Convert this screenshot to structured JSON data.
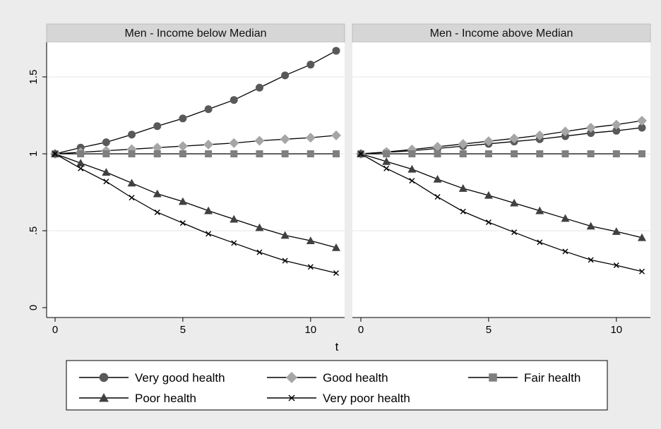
{
  "chart_data": {
    "type": "line",
    "xlabel": "t",
    "ylabel": "",
    "x": [
      0,
      1,
      2,
      3,
      4,
      5,
      6,
      7,
      8,
      9,
      10,
      11
    ],
    "xlim": [
      0,
      11
    ],
    "ylim": [
      0,
      1.7
    ],
    "x_ticks": [
      0,
      5,
      10
    ],
    "x_tick_labels": [
      "0",
      "5",
      "10"
    ],
    "y_ticks": [
      0,
      0.5,
      1,
      1.5
    ],
    "y_tick_labels": [
      "0",
      ".5",
      "1",
      "1.5"
    ],
    "grid": true,
    "legend_position": "bottom",
    "legend": [
      {
        "name": "Very good health",
        "marker": "circle",
        "color": "#595959"
      },
      {
        "name": "Good health",
        "marker": "diamond",
        "color": "#a6a6a6"
      },
      {
        "name": "Fair health",
        "marker": "square",
        "color": "#7f7f7f"
      },
      {
        "name": "Poor health",
        "marker": "triangle",
        "color": "#404040"
      },
      {
        "name": "Very poor health",
        "marker": "x",
        "color": "#000000"
      }
    ],
    "panels": [
      {
        "title": "Men - Income below Median",
        "series": [
          {
            "name": "Very good health",
            "values": [
              1.0,
              1.04,
              1.075,
              1.125,
              1.18,
              1.23,
              1.29,
              1.35,
              1.43,
              1.51,
              1.58,
              1.67
            ]
          },
          {
            "name": "Good health",
            "values": [
              1.0,
              1.01,
              1.02,
              1.03,
              1.04,
              1.05,
              1.06,
              1.07,
              1.085,
              1.095,
              1.105,
              1.12
            ]
          },
          {
            "name": "Fair health",
            "values": [
              1.0,
              1.0,
              1.0,
              1.0,
              1.0,
              1.0,
              1.0,
              1.0,
              1.0,
              1.0,
              1.0,
              1.0
            ]
          },
          {
            "name": "Poor health",
            "values": [
              1.0,
              0.94,
              0.88,
              0.81,
              0.74,
              0.69,
              0.63,
              0.575,
              0.52,
              0.47,
              0.435,
              0.39
            ]
          },
          {
            "name": "Very poor health",
            "values": [
              1.0,
              0.905,
              0.82,
              0.715,
              0.62,
              0.55,
              0.48,
              0.42,
              0.36,
              0.305,
              0.265,
              0.225
            ]
          }
        ]
      },
      {
        "title": "Men - Income above Median",
        "series": [
          {
            "name": "Very good health",
            "values": [
              1.0,
              1.01,
              1.02,
              1.035,
              1.05,
              1.065,
              1.08,
              1.095,
              1.115,
              1.135,
              1.15,
              1.17
            ]
          },
          {
            "name": "Good health",
            "values": [
              1.0,
              1.012,
              1.028,
              1.046,
              1.064,
              1.082,
              1.1,
              1.12,
              1.145,
              1.17,
              1.19,
              1.215
            ]
          },
          {
            "name": "Fair health",
            "values": [
              1.0,
              1.0,
              1.0,
              1.0,
              1.0,
              1.0,
              1.0,
              1.0,
              1.0,
              1.0,
              1.0,
              1.0
            ]
          },
          {
            "name": "Poor health",
            "values": [
              1.0,
              0.95,
              0.9,
              0.835,
              0.775,
              0.73,
              0.68,
              0.63,
              0.58,
              0.53,
              0.495,
              0.455
            ]
          },
          {
            "name": "Very poor health",
            "values": [
              1.0,
              0.905,
              0.825,
              0.72,
              0.625,
              0.555,
              0.49,
              0.425,
              0.365,
              0.31,
              0.275,
              0.235
            ]
          }
        ]
      }
    ]
  }
}
